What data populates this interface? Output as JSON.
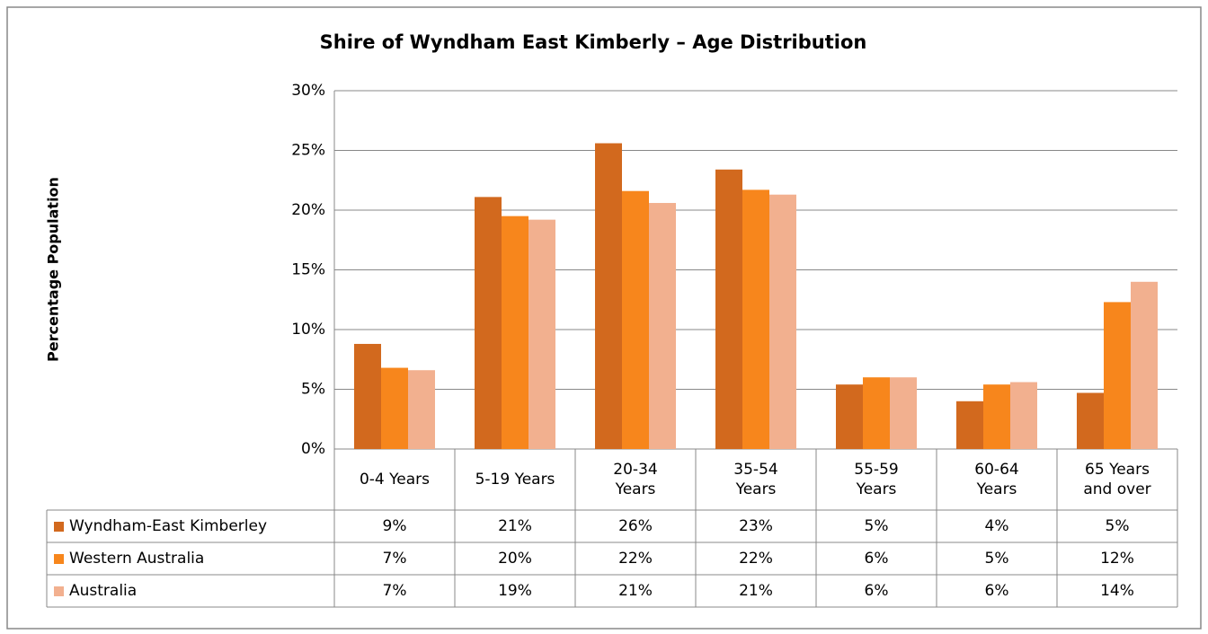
{
  "chart_data": {
    "type": "bar",
    "title": "Shire of Wyndham East Kimberly – Age Distribution",
    "y_label": "Percentage Population",
    "categories": [
      "0-4 Years",
      "5-19 Years",
      "20-34 Years",
      "35-54 Years",
      "55-59 Years",
      "60-64 Years",
      "65 Years and over"
    ],
    "series": [
      {
        "name": "Wyndham-East Kimberley",
        "color": "#d2691e",
        "values": [
          8.8,
          21.1,
          25.6,
          23.4,
          5.4,
          4.0,
          4.7
        ],
        "value_labels": [
          "9%",
          "21%",
          "26%",
          "23%",
          "5%",
          "4%",
          "5%"
        ]
      },
      {
        "name": "Western Australia",
        "color": "#f7861c",
        "values": [
          6.8,
          19.5,
          21.6,
          21.7,
          6.0,
          5.4,
          12.3
        ],
        "value_labels": [
          "7%",
          "20%",
          "22%",
          "22%",
          "6%",
          "5%",
          "12%"
        ]
      },
      {
        "name": "Australia",
        "color": "#f2b08f",
        "values": [
          6.6,
          19.2,
          20.6,
          21.3,
          6.0,
          5.6,
          14.0
        ],
        "value_labels": [
          "7%",
          "19%",
          "21%",
          "21%",
          "6%",
          "6%",
          "14%"
        ]
      }
    ],
    "ylim": [
      0,
      30
    ],
    "yticks": [
      {
        "value": 0,
        "label": "0%"
      },
      {
        "value": 5,
        "label": "5%"
      },
      {
        "value": 10,
        "label": "10%"
      },
      {
        "value": 15,
        "label": "15%"
      },
      {
        "value": 20,
        "label": "20%"
      },
      {
        "value": 25,
        "label": "25%"
      },
      {
        "value": 30,
        "label": "30%"
      }
    ],
    "grid": true
  }
}
